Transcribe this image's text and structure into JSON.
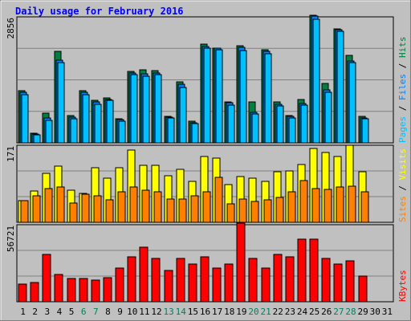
{
  "title": "Daily usage for February 2016",
  "colors": {
    "background": "#C0C0C0",
    "panel": "#C0C0C0",
    "grid": "#808080",
    "title": "#0000FF",
    "hits": "#008040",
    "files": "#0080FF",
    "pages": "#00C0FF",
    "visits": "#FFFF00",
    "sites": "#FF8000",
    "kbytes": "#FF0000",
    "weekday": "#000000",
    "weekend": "#00805C"
  },
  "chart_data": [
    {
      "type": "bar",
      "panel": "hits-files-pages",
      "y_max_label": "2856",
      "ylim": [
        0,
        2856
      ],
      "categories": [
        "1",
        "2",
        "3",
        "4",
        "5",
        "6",
        "7",
        "8",
        "9",
        "10",
        "11",
        "12",
        "13",
        "14",
        "15",
        "16",
        "17",
        "18",
        "19",
        "20",
        "21",
        "22",
        "23",
        "24",
        "25",
        "26",
        "27",
        "28",
        "29",
        "30",
        "31"
      ],
      "legend": [
        {
          "key": "pages",
          "label": "Pages"
        },
        {
          "key": "sep",
          "label": " / "
        },
        {
          "key": "files",
          "label": "Files"
        },
        {
          "key": "sep",
          "label": " / "
        },
        {
          "key": "hits",
          "label": "Hits"
        }
      ],
      "series": [
        {
          "name": "Hits",
          "values": [
            1190,
            210,
            680,
            2080,
            620,
            1190,
            970,
            1010,
            550,
            1610,
            1660,
            1640,
            600,
            1380,
            500,
            2230,
            2140,
            920,
            2200,
            930,
            2110,
            920,
            620,
            990,
            2900,
            1340,
            2580,
            1990,
            600,
            0,
            0
          ]
        },
        {
          "name": "Files",
          "values": [
            1140,
            200,
            570,
            1870,
            580,
            1150,
            920,
            990,
            520,
            1580,
            1560,
            1590,
            590,
            1320,
            460,
            2180,
            2140,
            910,
            2160,
            700,
            2070,
            880,
            600,
            900,
            2880,
            1200,
            2560,
            1860,
            570,
            0,
            0
          ]
        },
        {
          "name": "Pages",
          "values": [
            1090,
            190,
            510,
            1820,
            540,
            1100,
            880,
            960,
            500,
            1540,
            1510,
            1550,
            560,
            1250,
            430,
            2140,
            2110,
            860,
            2100,
            660,
            2020,
            830,
            560,
            850,
            2800,
            1140,
            2520,
            1820,
            540,
            0,
            0
          ]
        }
      ]
    },
    {
      "type": "bar",
      "panel": "visits-sites",
      "y_max_label": "171",
      "ylim": [
        0,
        171
      ],
      "categories": [
        "1",
        "2",
        "3",
        "4",
        "5",
        "6",
        "7",
        "8",
        "9",
        "10",
        "11",
        "12",
        "13",
        "14",
        "15",
        "16",
        "17",
        "18",
        "19",
        "20",
        "21",
        "22",
        "23",
        "24",
        "25",
        "26",
        "27",
        "28",
        "29",
        "30",
        "31"
      ],
      "legend": [
        {
          "key": "sites",
          "label": "Sites"
        },
        {
          "key": "sep",
          "label": " / "
        },
        {
          "key": "visits",
          "label": "Visits"
        }
      ],
      "series": [
        {
          "name": "Visits",
          "values": [
            48,
            70,
            108,
            124,
            71,
            65,
            121,
            98,
            121,
            160,
            126,
            126,
            103,
            117,
            90,
            146,
            143,
            84,
            101,
            98,
            90,
            113,
            114,
            128,
            163,
            155,
            146,
            171,
            113,
            0,
            0
          ]
        },
        {
          "name": "Sites",
          "values": [
            48,
            58,
            75,
            79,
            43,
            63,
            59,
            50,
            67,
            79,
            72,
            68,
            52,
            51,
            59,
            67,
            100,
            41,
            52,
            47,
            50,
            55,
            67,
            93,
            75,
            73,
            78,
            81,
            67,
            0,
            0
          ]
        }
      ]
    },
    {
      "type": "bar",
      "panel": "kbytes",
      "y_max_label": "56721",
      "ylim": [
        0,
        56721
      ],
      "categories": [
        "1",
        "2",
        "3",
        "4",
        "5",
        "6",
        "7",
        "8",
        "9",
        "10",
        "11",
        "12",
        "13",
        "14",
        "15",
        "16",
        "17",
        "18",
        "19",
        "20",
        "21",
        "22",
        "23",
        "24",
        "25",
        "26",
        "27",
        "28",
        "29",
        "30",
        "31"
      ],
      "legend": [
        {
          "key": "kbytes",
          "label": "KBytes"
        }
      ],
      "series": [
        {
          "name": "KBytes",
          "values": [
            13000,
            14000,
            35000,
            20000,
            17000,
            17000,
            16000,
            18000,
            25000,
            33000,
            40000,
            32000,
            23000,
            32000,
            28000,
            33000,
            25000,
            27500,
            58000,
            32000,
            25000,
            35000,
            33000,
            46000,
            46000,
            32000,
            27500,
            30000,
            19000,
            0,
            0
          ]
        }
      ]
    }
  ],
  "weekend_days": [
    "6",
    "7",
    "13",
    "14",
    "20",
    "21",
    "27",
    "28"
  ]
}
